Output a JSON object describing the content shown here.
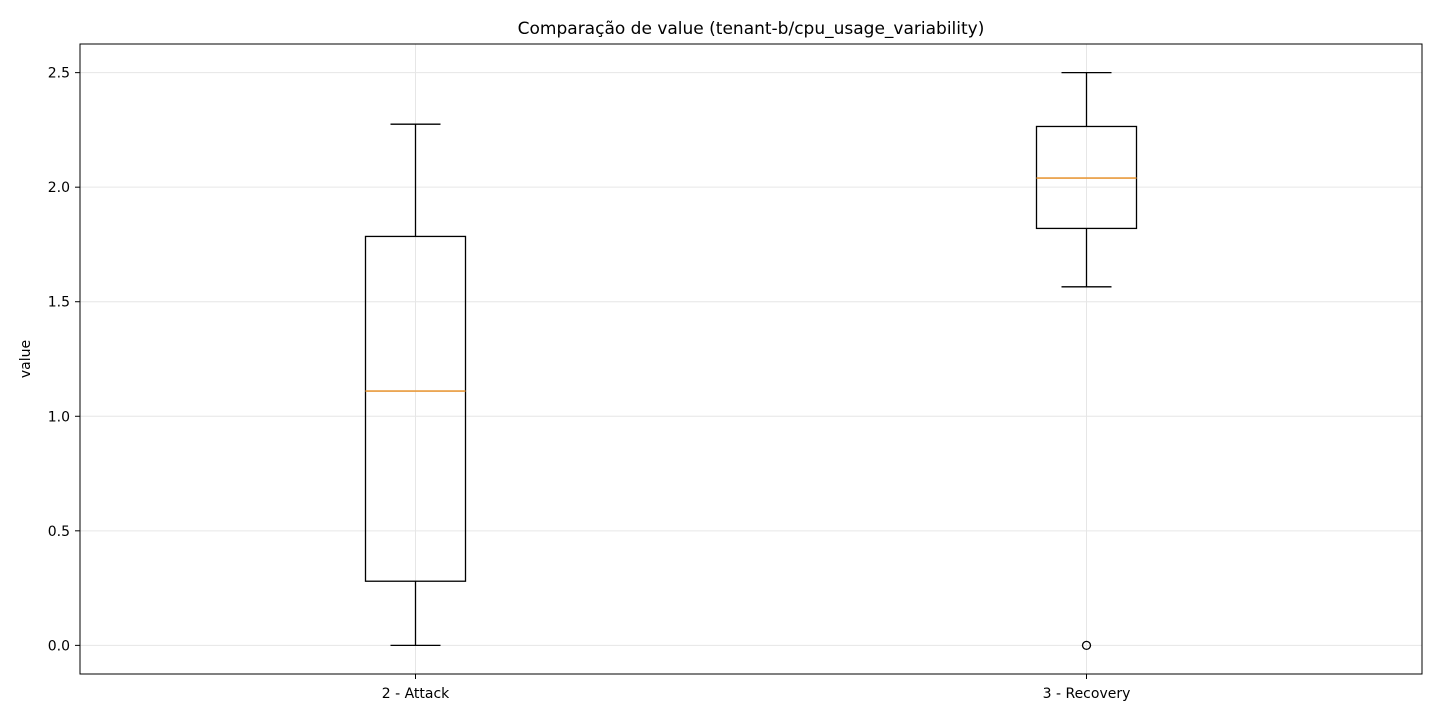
{
  "chart_data": {
    "type": "boxplot",
    "title": "Comparação de value (tenant-b/cpu_usage_variability)",
    "xlabel": "",
    "ylabel": "value",
    "ylim": [
      -0.125,
      2.625
    ],
    "yticks": [
      0.0,
      0.5,
      1.0,
      1.5,
      2.0,
      2.5
    ],
    "ytick_labels": [
      "0.0",
      "0.5",
      "1.0",
      "1.5",
      "2.0",
      "2.5"
    ],
    "grid": true,
    "categories": [
      "2 - Attack",
      "3 - Recovery"
    ],
    "boxes": [
      {
        "name": "2 - Attack",
        "whisker_low": 0.0,
        "q1": 0.28,
        "median": 1.11,
        "q3": 1.785,
        "whisker_high": 2.275,
        "outliers": []
      },
      {
        "name": "3 - Recovery",
        "whisker_low": 1.565,
        "q1": 1.82,
        "median": 2.04,
        "q3": 2.265,
        "whisker_high": 2.5,
        "outliers": [
          0.0
        ]
      }
    ],
    "colors": {
      "box": "#000000",
      "median": "#e89a3c",
      "grid": "#e6e6e6"
    }
  }
}
